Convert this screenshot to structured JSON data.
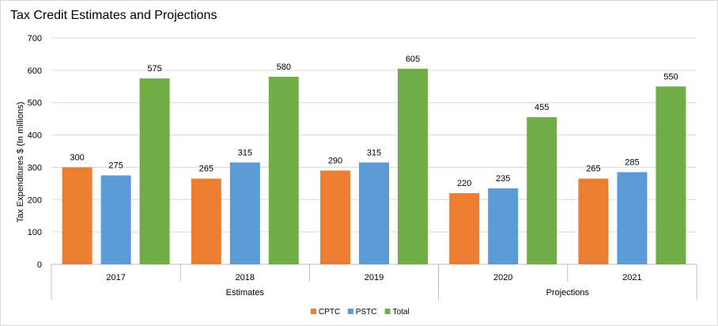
{
  "chart_data": {
    "type": "bar",
    "title": "Tax Credit Estimates and Projections",
    "xlabel": "",
    "ylabel": "Tax Expenditures $ (In millions)",
    "ylim": [
      0,
      700
    ],
    "yticks": [
      0,
      100,
      200,
      300,
      400,
      500,
      600,
      700
    ],
    "categories": [
      "2017",
      "2018",
      "2019",
      "2020",
      "2021"
    ],
    "groups": [
      {
        "label": "Estimates",
        "categories": [
          "2017",
          "2018",
          "2019"
        ]
      },
      {
        "label": "Projections",
        "categories": [
          "2020",
          "2021"
        ]
      }
    ],
    "series": [
      {
        "name": "CPTC",
        "color": "#ED7D31",
        "values": [
          300,
          265,
          290,
          220,
          265
        ]
      },
      {
        "name": "PSTC",
        "color": "#5B9BD5",
        "values": [
          275,
          315,
          315,
          235,
          285
        ]
      },
      {
        "name": "Total",
        "color": "#70AD47",
        "values": [
          575,
          580,
          605,
          455,
          550
        ]
      }
    ],
    "grid": true,
    "legend": "bottom"
  }
}
